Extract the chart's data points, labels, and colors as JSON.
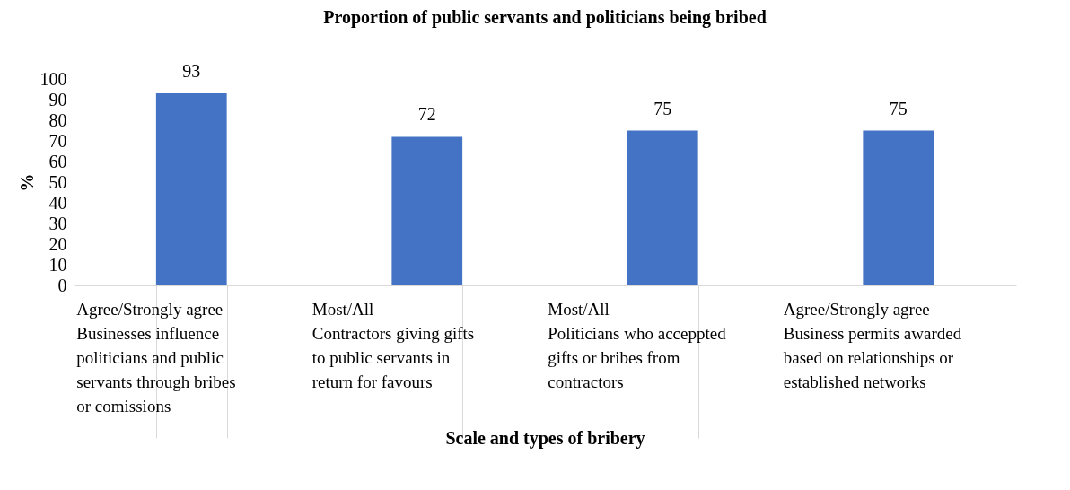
{
  "chart_data": {
    "type": "bar",
    "title": "Proportion of public servants and politicians being bribed",
    "xlabel": "Scale and types of bribery",
    "ylabel": "%",
    "categories": [
      "Agree/Strongly agree\nBusinesses influence politicians and public servants through bribes or comissions",
      "Most/All\nContractors giving gifts to public servants in return for favours",
      "Most/All\nPoliticians who acceppted gifts or bribes from contractors",
      "Agree/Strongly agree\nBusiness permits awarded based on relationships or established networks"
    ],
    "values": [
      93,
      72,
      75,
      75
    ],
    "color": "#4472c4",
    "ylim": [
      0,
      100
    ],
    "yticks": [
      0,
      10,
      20,
      30,
      40,
      50,
      60,
      70,
      80,
      90,
      100
    ],
    "grid": false,
    "data_labels": true
  }
}
